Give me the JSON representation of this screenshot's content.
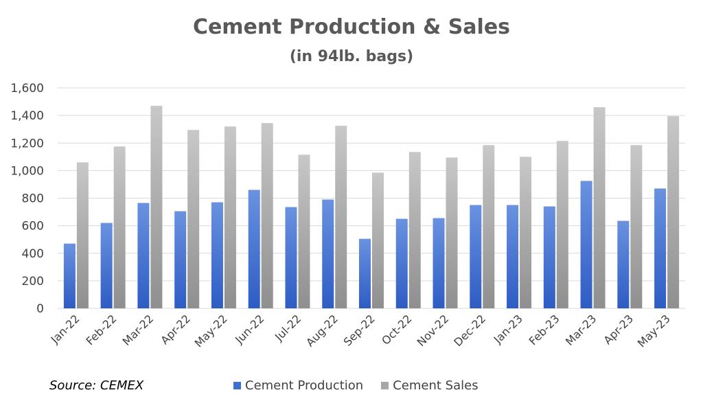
{
  "chart_data": {
    "type": "bar",
    "title": "Cement Production & Sales",
    "subtitle": "(in 94lb. bags)",
    "source": "Source: CEMEX",
    "categories": [
      "Jan-22",
      "Feb-22",
      "Mar-22",
      "Apr-22",
      "May-22",
      "Jun-22",
      "Jul-22",
      "Aug-22",
      "Sep-22",
      "Oct-22",
      "Nov-22",
      "Dec-22",
      "Jan-23",
      "Feb-23",
      "Mar-23",
      "Apr-23",
      "May-23"
    ],
    "series": [
      {
        "name": "Cement Production",
        "color": "#3f6fd1",
        "values": [
          470,
          620,
          765,
          705,
          770,
          860,
          735,
          790,
          505,
          650,
          655,
          750,
          750,
          740,
          925,
          635,
          870
        ]
      },
      {
        "name": "Cement Sales",
        "color": "#a6a6a6",
        "values": [
          1060,
          1175,
          1470,
          1295,
          1320,
          1345,
          1115,
          1325,
          985,
          1135,
          1095,
          1185,
          1100,
          1215,
          1460,
          1185,
          1395
        ]
      }
    ],
    "ylim": [
      0,
      1600
    ],
    "yticks": [
      "0",
      "200",
      "400",
      "600",
      "800",
      "1,000",
      "1,200",
      "1,400",
      "1,600"
    ],
    "ytick_values": [
      0,
      200,
      400,
      600,
      800,
      1000,
      1200,
      1400,
      1600
    ],
    "grid": true,
    "legend_position": "bottom"
  }
}
